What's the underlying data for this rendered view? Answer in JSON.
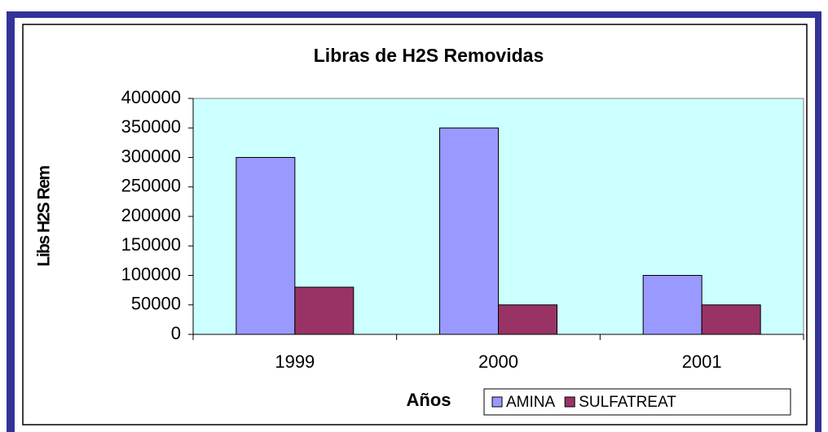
{
  "chart_data": {
    "type": "bar",
    "title": "Libras de H2S Removidas",
    "x_label": "Años",
    "y_label": "Libs H2S Rem",
    "categories": [
      "1999",
      "2000",
      "2001"
    ],
    "series": [
      {
        "name": "AMINA",
        "color": "#9999ff",
        "values": [
          300000,
          350000,
          100000
        ]
      },
      {
        "name": "SULFATREAT",
        "color": "#993366",
        "values": [
          80000,
          50000,
          50000
        ]
      }
    ],
    "ylim": [
      0,
      400000
    ],
    "yticks": [
      0,
      50000,
      100000,
      150000,
      200000,
      250000,
      300000,
      350000,
      400000
    ],
    "grid": false,
    "legend": "bottom"
  }
}
